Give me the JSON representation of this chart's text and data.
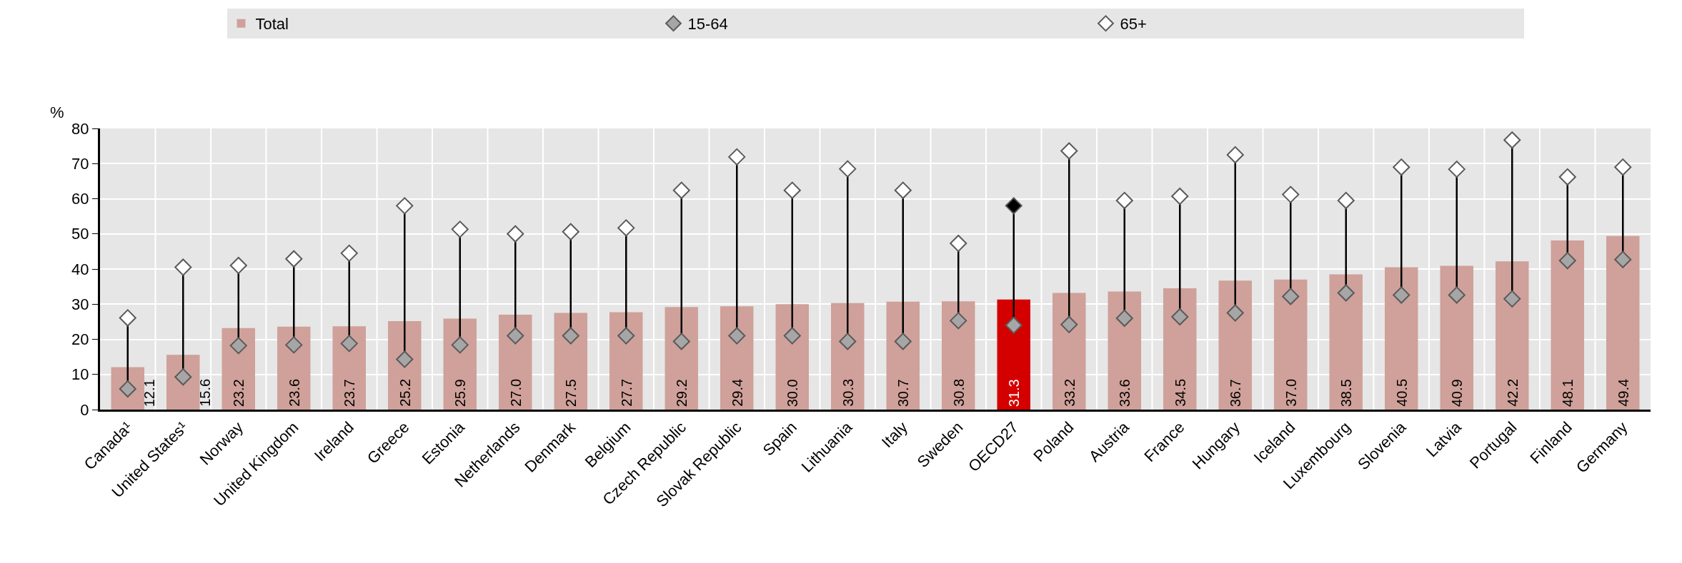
{
  "chart_data": {
    "type": "bar",
    "ylabel": "%",
    "categories": [
      "Canada¹",
      "United States¹",
      "Norway",
      "United Kingdom",
      "Ireland",
      "Greece",
      "Estonia",
      "Netherlands",
      "Denmark",
      "Belgium",
      "Czech Republic",
      "Slovak Republic",
      "Spain",
      "Lithuania",
      "Italy",
      "Sweden",
      "OECD27",
      "Poland",
      "Austria",
      "France",
      "Hungary",
      "Iceland",
      "Luxembourg",
      "Slovenia",
      "Latvia",
      "Portugal",
      "Finland",
      "Germany"
    ],
    "series": [
      {
        "name": "Total",
        "colors": [
          "#cfa19a",
          "#cfa19a",
          "#cfa19a",
          "#cfa19a",
          "#cfa19a",
          "#cfa19a",
          "#cfa19a",
          "#cfa19a",
          "#cfa19a",
          "#cfa19a",
          "#cfa19a",
          "#cfa19a",
          "#cfa19a",
          "#cfa19a",
          "#cfa19a",
          "#cfa19a",
          "#d40000",
          "#cfa19a",
          "#cfa19a",
          "#cfa19a",
          "#cfa19a",
          "#cfa19a",
          "#cfa19a",
          "#cfa19a",
          "#cfa19a",
          "#cfa19a",
          "#cfa19a",
          "#cfa19a"
        ],
        "value_labels": [
          "12.1",
          "15.6",
          "23.2",
          "23.6",
          "23.7",
          "25.2",
          "25.9",
          "27.0",
          "27.5",
          "27.7",
          "29.2",
          "29.4",
          "30.0",
          "30.3",
          "30.7",
          "30.8",
          "31.3",
          "33.2",
          "33.6",
          "34.5",
          "36.7",
          "37.0",
          "38.5",
          "40.5",
          "40.9",
          "42.2",
          "48.1",
          "49.4"
        ],
        "values": [
          12.1,
          15.6,
          23.2,
          23.6,
          23.7,
          25.2,
          25.9,
          27.0,
          27.5,
          27.7,
          29.2,
          29.4,
          30.0,
          30.3,
          30.7,
          30.8,
          31.3,
          33.2,
          33.6,
          34.5,
          36.7,
          37.0,
          38.5,
          40.5,
          40.9,
          42.2,
          48.1,
          49.4
        ]
      },
      {
        "name": "15-64",
        "type": "scatter",
        "marker": "diamond",
        "color": "#a6a6a6",
        "values": [
          5.9,
          9.3,
          18.2,
          18.4,
          18.8,
          14.3,
          18.4,
          21.0,
          21.0,
          21.0,
          19.4,
          21.0,
          21.0,
          19.4,
          19.4,
          25.3,
          24.0,
          24.2,
          26.0,
          26.4,
          27.5,
          32.2,
          33.2,
          32.6,
          32.6,
          31.5,
          42.4,
          42.7
        ]
      },
      {
        "name": "65+",
        "type": "scatter",
        "marker": "diamond",
        "colors": [
          "#ffffff",
          "#ffffff",
          "#ffffff",
          "#ffffff",
          "#ffffff",
          "#ffffff",
          "#ffffff",
          "#ffffff",
          "#ffffff",
          "#ffffff",
          "#ffffff",
          "#ffffff",
          "#ffffff",
          "#ffffff",
          "#ffffff",
          "#ffffff",
          "#000000",
          "#ffffff",
          "#ffffff",
          "#ffffff",
          "#ffffff",
          "#ffffff",
          "#ffffff",
          "#ffffff",
          "#ffffff",
          "#ffffff",
          "#ffffff",
          "#ffffff"
        ],
        "values": [
          26.1,
          40.5,
          41.0,
          42.9,
          44.5,
          58.0,
          51.3,
          50.0,
          50.6,
          51.7,
          62.4,
          71.9,
          62.4,
          68.5,
          62.4,
          47.3,
          58.0,
          73.6,
          59.5,
          60.7,
          72.5,
          61.2,
          59.5,
          69.0,
          68.4,
          76.7,
          66.2,
          69.0
        ]
      }
    ],
    "ylim": [
      0,
      80
    ],
    "yticks": [
      0,
      10,
      20,
      30,
      40,
      50,
      60,
      70,
      80
    ],
    "grid": true,
    "legend": "top"
  }
}
